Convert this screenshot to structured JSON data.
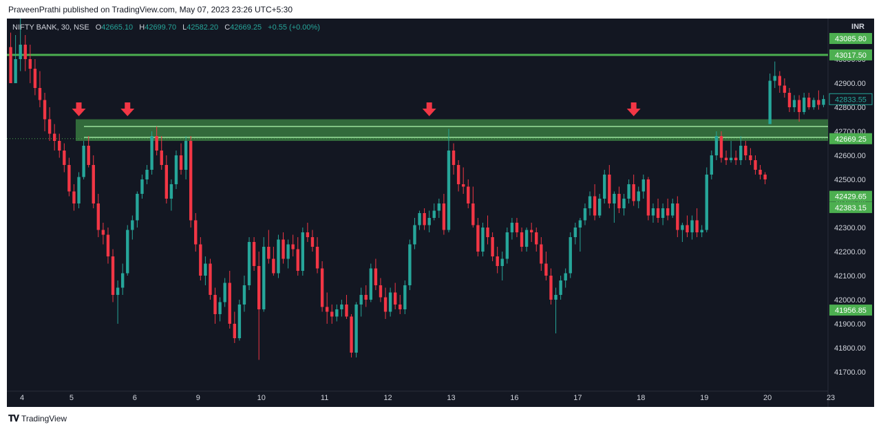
{
  "publisher": "PraveenPrathi published on TradingView.com, May 07, 2023 23:26 UTC+5:30",
  "footer": {
    "brand": "TradingView",
    "logo_icon": "tradingview-logo-icon"
  },
  "legend": {
    "symbol": "NIFTY BANK, 30, NSE",
    "o_label": "O",
    "o": "42665.10",
    "h_label": "H",
    "h": "42699.70",
    "l_label": "L",
    "l": "42582.20",
    "c_label": "C",
    "c": "42669.25",
    "change": "+0.55 (+0.00%)"
  },
  "currency": "INR",
  "colors": {
    "bg": "#131722",
    "up": "#26a69a",
    "down": "#f23645",
    "line": "#4caf50",
    "zone": "#4caf50",
    "arrow": "#f23645"
  },
  "chart_data": {
    "type": "candlestick",
    "ylim": [
      41640,
      43140
    ],
    "y_ticks": [
      41700,
      41800,
      41900,
      42000,
      42100,
      42200,
      42300,
      42400,
      42500,
      42600,
      42700,
      42800,
      42900,
      43000
    ],
    "y_tick_labels": [
      "41700.00",
      "41800.00",
      "41900.00",
      "42000.00",
      "42100.00",
      "42200.00",
      "42300.00",
      "42400.00",
      "42500.00",
      "42600.00",
      "42700.00",
      "42800.00",
      "42900.00",
      "43000.00"
    ],
    "x_labels": [
      "4",
      "5",
      "6",
      "9",
      "10",
      "11",
      "12",
      "13",
      "16",
      "17",
      "18",
      "19",
      "20",
      "23"
    ],
    "candles_per_session": 13,
    "ohlc": [
      [
        43050,
        43110,
        42900,
        42900
      ],
      [
        42900,
        43100,
        42900,
        43000
      ],
      [
        43000,
        43200,
        42950,
        43060
      ],
      [
        43060,
        43100,
        42950,
        43000
      ],
      [
        43000,
        43060,
        42900,
        42960
      ],
      [
        42960,
        43000,
        42850,
        42880
      ],
      [
        42880,
        42950,
        42800,
        42830
      ],
      [
        42830,
        42860,
        42700,
        42750
      ],
      [
        42750,
        42800,
        42660,
        42690
      ],
      [
        42690,
        42730,
        42620,
        42660
      ],
      [
        42660,
        42690,
        42590,
        42620
      ],
      [
        42620,
        42650,
        42530,
        42560
      ],
      [
        42560,
        42590,
        42430,
        42450
      ],
      [
        42450,
        42480,
        42370,
        42400
      ],
      [
        42400,
        42530,
        42380,
        42510
      ],
      [
        42510,
        42660,
        42500,
        42640
      ],
      [
        42640,
        42680,
        42550,
        42560
      ],
      [
        42560,
        42600,
        42380,
        42400
      ],
      [
        42400,
        42440,
        42260,
        42290
      ],
      [
        42290,
        42320,
        42230,
        42270
      ],
      [
        42270,
        42300,
        42150,
        42180
      ],
      [
        42180,
        42210,
        41990,
        42020
      ],
      [
        42020,
        42080,
        41900,
        42050
      ],
      [
        42050,
        42150,
        42020,
        42110
      ],
      [
        42110,
        42310,
        42100,
        42290
      ],
      [
        42290,
        42350,
        42250,
        42330
      ],
      [
        42330,
        42450,
        42300,
        42440
      ],
      [
        42440,
        42520,
        42420,
        42500
      ],
      [
        42500,
        42560,
        42480,
        42540
      ],
      [
        42540,
        42700,
        42520,
        42680
      ],
      [
        42680,
        42720,
        42600,
        42620
      ],
      [
        42620,
        42680,
        42540,
        42560
      ],
      [
        42560,
        42600,
        42400,
        42420
      ],
      [
        42420,
        42500,
        42370,
        42480
      ],
      [
        42480,
        42620,
        42460,
        42600
      ],
      [
        42600,
        42650,
        42520,
        42540
      ],
      [
        42540,
        42680,
        42500,
        42660
      ],
      [
        42660,
        42680,
        42300,
        42330
      ],
      [
        42330,
        42360,
        42200,
        42230
      ],
      [
        42230,
        42260,
        42080,
        42100
      ],
      [
        42100,
        42180,
        42060,
        42150
      ],
      [
        42150,
        42170,
        42000,
        42020
      ],
      [
        42020,
        42050,
        41900,
        41940
      ],
      [
        41940,
        42010,
        41910,
        41990
      ],
      [
        41990,
        42090,
        41970,
        42070
      ],
      [
        42070,
        42120,
        41880,
        41900
      ],
      [
        41900,
        41950,
        41820,
        41840
      ],
      [
        41840,
        42000,
        41830,
        41980
      ],
      [
        41980,
        42100,
        41950,
        42060
      ],
      [
        42060,
        42260,
        42040,
        42240
      ],
      [
        42240,
        42260,
        42120,
        42140
      ],
      [
        42140,
        42200,
        41750,
        41960
      ],
      [
        41960,
        42260,
        41950,
        42220
      ],
      [
        42220,
        42290,
        42150,
        42170
      ],
      [
        42170,
        42220,
        42100,
        42110
      ],
      [
        42110,
        42270,
        42090,
        42250
      ],
      [
        42250,
        42280,
        42150,
        42170
      ],
      [
        42170,
        42250,
        42130,
        42230
      ],
      [
        42230,
        42270,
        42180,
        42210
      ],
      [
        42210,
        42260,
        42100,
        42120
      ],
      [
        42120,
        42300,
        42100,
        42280
      ],
      [
        42280,
        42320,
        42240,
        42260
      ],
      [
        42260,
        42290,
        42200,
        42220
      ],
      [
        42220,
        42260,
        42110,
        42130
      ],
      [
        42130,
        42160,
        41950,
        41970
      ],
      [
        41970,
        42030,
        41900,
        41950
      ],
      [
        41950,
        41980,
        41900,
        41930
      ],
      [
        41930,
        41980,
        41910,
        41960
      ],
      [
        41960,
        42000,
        41930,
        41980
      ],
      [
        41980,
        42020,
        41920,
        41930
      ],
      [
        41930,
        41940,
        41760,
        41780
      ],
      [
        41780,
        41990,
        41760,
        41980
      ],
      [
        41980,
        42050,
        41930,
        42020
      ],
      [
        42020,
        42060,
        41970,
        42000
      ],
      [
        42000,
        42150,
        41990,
        42130
      ],
      [
        42130,
        42170,
        42040,
        42060
      ],
      [
        42060,
        42090,
        41990,
        42010
      ],
      [
        42010,
        42050,
        41920,
        41950
      ],
      [
        41950,
        42050,
        41930,
        42030
      ],
      [
        42030,
        42070,
        41960,
        41980
      ],
      [
        41980,
        42020,
        41940,
        41960
      ],
      [
        41960,
        42080,
        41940,
        42060
      ],
      [
        42060,
        42250,
        42040,
        42230
      ],
      [
        42230,
        42340,
        42210,
        42310
      ],
      [
        42310,
        42370,
        42290,
        42360
      ],
      [
        42360,
        42380,
        42290,
        42310
      ],
      [
        42310,
        42370,
        42280,
        42340
      ],
      [
        42340,
        42400,
        42330,
        42370
      ],
      [
        42370,
        42420,
        42340,
        42400
      ],
      [
        42400,
        42440,
        42270,
        42290
      ],
      [
        42290,
        42710,
        42280,
        42620
      ],
      [
        42620,
        42650,
        42520,
        42560
      ],
      [
        42560,
        42580,
        42450,
        42480
      ],
      [
        42480,
        42550,
        42440,
        42470
      ],
      [
        42470,
        42500,
        42380,
        42400
      ],
      [
        42400,
        42470,
        42300,
        42310
      ],
      [
        42310,
        42340,
        42180,
        42200
      ],
      [
        42200,
        42320,
        42180,
        42300
      ],
      [
        42300,
        42350,
        42230,
        42260
      ],
      [
        42260,
        42280,
        42160,
        42180
      ],
      [
        42180,
        42220,
        42110,
        42140
      ],
      [
        42140,
        42200,
        42080,
        42170
      ],
      [
        42170,
        42300,
        42150,
        42280
      ],
      [
        42280,
        42340,
        42250,
        42320
      ],
      [
        42320,
        42340,
        42260,
        42280
      ],
      [
        42280,
        42300,
        42200,
        42220
      ],
      [
        42220,
        42300,
        42200,
        42290
      ],
      [
        42290,
        42320,
        42240,
        42280
      ],
      [
        42280,
        42300,
        42200,
        42230
      ],
      [
        42230,
        42260,
        42120,
        42150
      ],
      [
        42150,
        42200,
        42080,
        42100
      ],
      [
        42100,
        42130,
        41980,
        42000
      ],
      [
        42000,
        42050,
        41860,
        42020
      ],
      [
        42020,
        42100,
        42000,
        42080
      ],
      [
        42080,
        42130,
        42050,
        42110
      ],
      [
        42110,
        42280,
        42090,
        42260
      ],
      [
        42260,
        42320,
        42230,
        42300
      ],
      [
        42300,
        42340,
        42200,
        42330
      ],
      [
        42330,
        42400,
        42310,
        42380
      ],
      [
        42380,
        42450,
        42350,
        42430
      ],
      [
        42430,
        42480,
        42330,
        42350
      ],
      [
        42350,
        42440,
        42340,
        42420
      ],
      [
        42420,
        42540,
        42400,
        42520
      ],
      [
        42520,
        42560,
        42380,
        42400
      ],
      [
        42400,
        42450,
        42320,
        42440
      ],
      [
        42440,
        42470,
        42360,
        42380
      ],
      [
        42380,
        42440,
        42350,
        42420
      ],
      [
        42420,
        42500,
        42400,
        42480
      ],
      [
        42480,
        42520,
        42390,
        42410
      ],
      [
        42410,
        42470,
        42380,
        42450
      ],
      [
        42450,
        42520,
        42420,
        42500
      ],
      [
        42500,
        42510,
        42330,
        42350
      ],
      [
        42350,
        42400,
        42320,
        42380
      ],
      [
        42380,
        42420,
        42320,
        42340
      ],
      [
        42340,
        42400,
        42310,
        42380
      ],
      [
        42380,
        42420,
        42330,
        42350
      ],
      [
        42350,
        42420,
        42340,
        42400
      ],
      [
        42400,
        42430,
        42260,
        42290
      ],
      [
        42290,
        42320,
        42240,
        42310
      ],
      [
        42310,
        42350,
        42260,
        42280
      ],
      [
        42280,
        42350,
        42250,
        42330
      ],
      [
        42330,
        42380,
        42260,
        42280
      ],
      [
        42280,
        42310,
        42260,
        42290
      ],
      [
        42290,
        42550,
        42280,
        42520
      ],
      [
        42520,
        42620,
        42500,
        42600
      ],
      [
        42600,
        42700,
        42580,
        42680
      ],
      [
        42680,
        42700,
        42570,
        42590
      ],
      [
        42590,
        42620,
        42560,
        42580
      ],
      [
        42580,
        42660,
        42570,
        42590
      ],
      [
        42590,
        42620,
        42560,
        42580
      ],
      [
        42580,
        42680,
        42560,
        42640
      ],
      [
        42640,
        42660,
        42580,
        42600
      ],
      [
        42600,
        42630,
        42560,
        42580
      ],
      [
        42580,
        42600,
        42520,
        42540
      ],
      [
        42540,
        42560,
        42500,
        42520
      ],
      [
        42520,
        42530,
        42480,
        42500
      ],
      [
        42730,
        42940,
        42730,
        42910
      ],
      [
        42910,
        42990,
        42880,
        42930
      ],
      [
        42930,
        42950,
        42860,
        42890
      ],
      [
        42890,
        42920,
        42840,
        42860
      ],
      [
        42860,
        42880,
        42780,
        42800
      ],
      [
        42800,
        42850,
        42780,
        42830
      ],
      [
        42830,
        42850,
        42740,
        42780
      ],
      [
        42780,
        42860,
        42770,
        42840
      ],
      [
        42840,
        42860,
        42790,
        42800
      ],
      [
        42800,
        42840,
        42790,
        42830
      ],
      [
        42830,
        42870,
        42790,
        42810
      ],
      [
        42810,
        42850,
        42800,
        42834
      ]
    ],
    "horizontal_lines": [
      {
        "value": 43017.5
      }
    ],
    "zone": {
      "from": 42660,
      "to": 42750,
      "mid_lines": [
        42720,
        42675
      ]
    },
    "arrows_at_candle": [
      14,
      24,
      86,
      128
    ],
    "price_labels": [
      {
        "value": 43085.8,
        "text": "43085.80",
        "style": "green"
      },
      {
        "value": 43017.5,
        "text": "43017.50",
        "style": "green"
      },
      {
        "value": 42833.55,
        "text": "42833.55",
        "style": "outline"
      },
      {
        "value": 42669.25,
        "text": "42669.25",
        "style": "green"
      },
      {
        "value": 42429.65,
        "text": "42429.65",
        "style": "green"
      },
      {
        "value": 42383.15,
        "text": "42383.15",
        "style": "green"
      },
      {
        "value": 41956.85,
        "text": "41956.85",
        "style": "green"
      }
    ]
  }
}
